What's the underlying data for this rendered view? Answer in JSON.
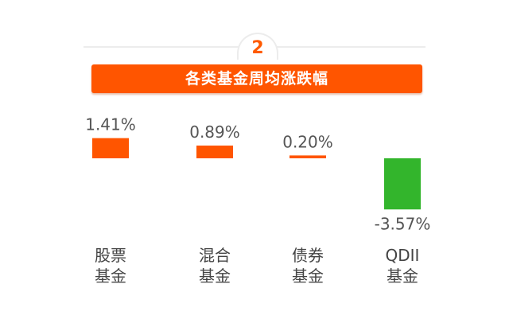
{
  "badge": {
    "number": "2"
  },
  "chart_data": {
    "type": "bar",
    "title": "各类基金周均涨跌幅",
    "categories": [
      [
        "股票",
        "基金"
      ],
      [
        "混合",
        "基金"
      ],
      [
        "债券",
        "基金"
      ],
      [
        "QDII",
        "基金"
      ]
    ],
    "values": [
      1.41,
      0.89,
      0.2,
      -3.57
    ],
    "value_labels": [
      "1.41%",
      "0.89%",
      "0.20%",
      "-3.57%"
    ],
    "colors": {
      "positive": "#ff5500",
      "negative": "#33b52c"
    }
  }
}
